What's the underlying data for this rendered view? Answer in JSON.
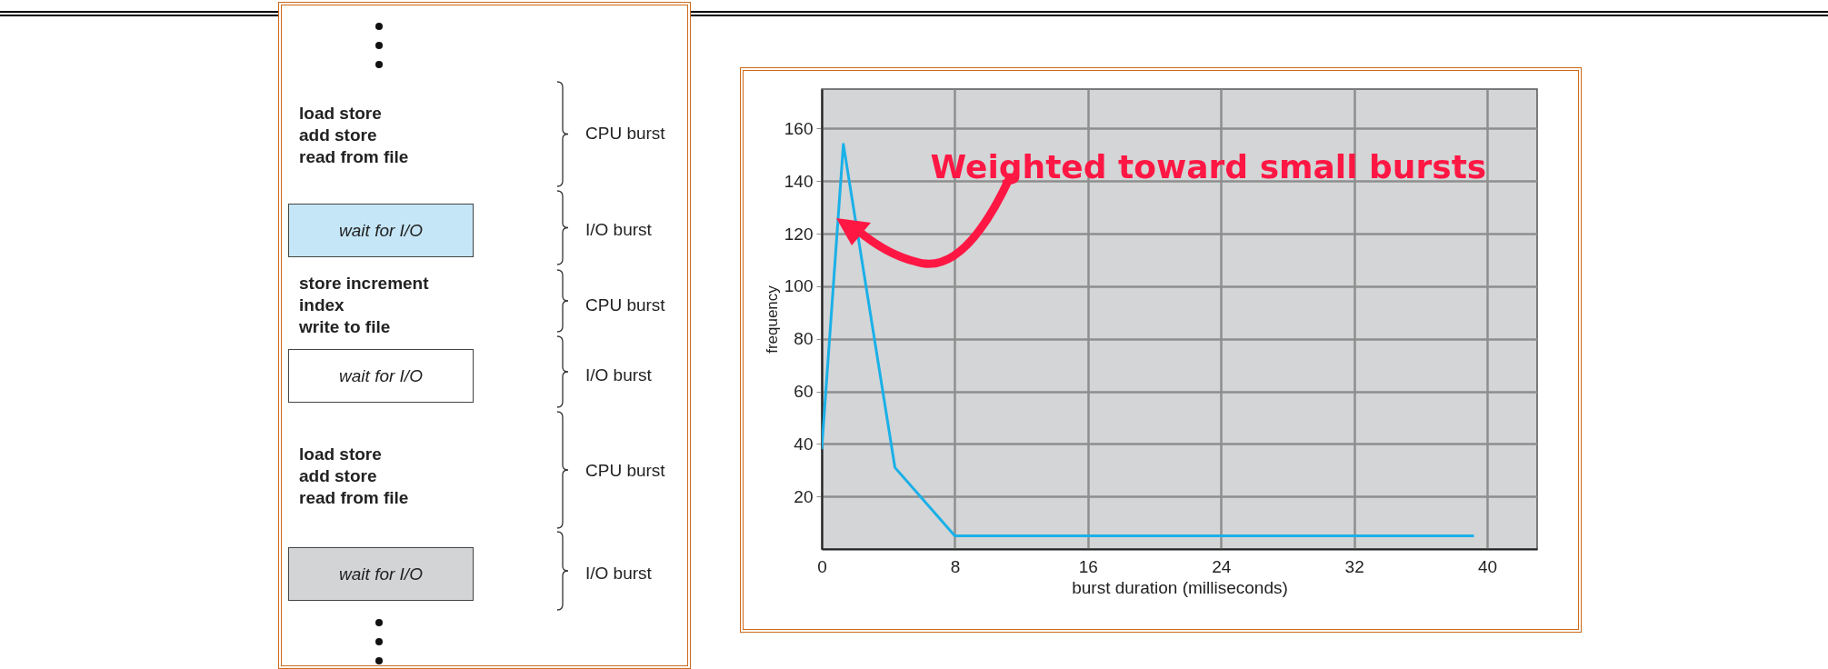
{
  "chart_data": [
    {
      "type": "other",
      "annotations": [
        "load store",
        "add store",
        "read from file",
        "CPU burst",
        "wait for I/O",
        "I/O burst",
        "store increment",
        "index",
        "write to file",
        "CPU burst",
        "wait for I/O",
        "I/O burst",
        "load store",
        "add store",
        "read from file",
        "CPU burst",
        "wait for I/O",
        "I/O burst"
      ]
    },
    {
      "type": "line",
      "xlabel": "burst duration (milliseconds)",
      "ylabel": "frequency",
      "x": [
        0,
        1.3,
        4.4,
        8,
        39.2
      ],
      "series": [
        {
          "color": "#1ab0e8",
          "values": [
            38,
            154,
            31,
            5,
            5
          ]
        }
      ],
      "xlim": [
        0,
        43
      ],
      "ylim": [
        0,
        175
      ],
      "xticks": [
        0,
        8,
        16,
        24,
        32,
        40
      ],
      "yticks": [
        20,
        40,
        60,
        80,
        100,
        120,
        140,
        160
      ],
      "grid": true,
      "annotations": [
        {
          "text": "Weighted toward small bursts",
          "x": 2.1,
          "y": 119
        }
      ]
    }
  ]
}
